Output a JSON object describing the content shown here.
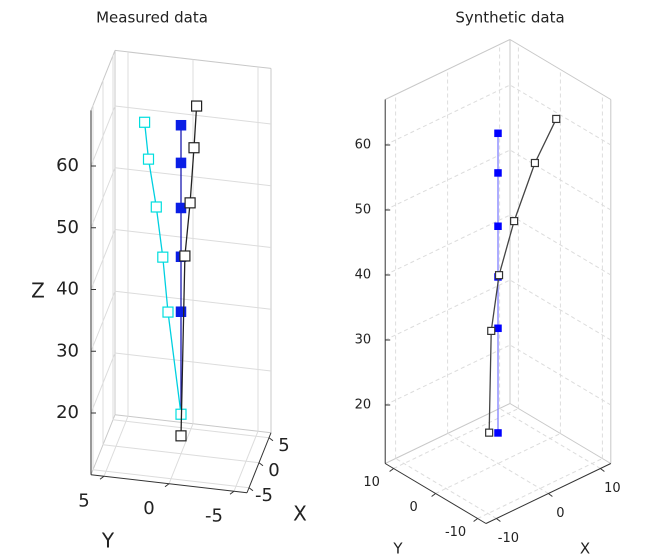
{
  "chart_data": [
    {
      "type": "line3d",
      "title": "Measured data",
      "xlabel": "X",
      "ylabel": "Y",
      "zlabel": "Z",
      "xlim": [
        -6,
        6
      ],
      "ylim": [
        -6,
        6
      ],
      "zlim": [
        10,
        69
      ],
      "xticks": [
        -5,
        0,
        5
      ],
      "yticks": [
        -5,
        0,
        5
      ],
      "zticks": [
        20,
        30,
        40,
        50,
        60
      ],
      "grid": true,
      "grid_style": "solid",
      "series": [
        {
          "color": "#0a1ee6",
          "line_color": "#1a1ab0",
          "filled": true,
          "x": [
            0,
            0,
            0,
            0,
            0,
            0
          ],
          "y": [
            0,
            0,
            0,
            0,
            0,
            0
          ],
          "values": [
            16.4,
            33,
            41.9,
            49.8,
            57.1,
            63.2
          ]
        },
        {
          "color": "#00dede",
          "line_color": "#00d0e0",
          "filled": false,
          "x": [
            0,
            0,
            0,
            0,
            0,
            0
          ],
          "y": [
            0,
            1,
            1.4,
            1.9,
            2.5,
            2.8
          ],
          "values": [
            16.4,
            32.7,
            41.5,
            49.5,
            57.1,
            63
          ]
        },
        {
          "color": "#222222",
          "line_color": "#222222",
          "filled": false,
          "x": [
            0,
            0,
            0,
            0,
            0
          ],
          "y": [
            0,
            -0.3,
            -0.7,
            -1,
            -1.2
          ],
          "values": [
            12.9,
            42.1,
            50.8,
            59.8,
            66.6
          ]
        }
      ]
    },
    {
      "type": "line3d",
      "title": "Synthetic data",
      "xlabel": "X",
      "ylabel": "Y",
      "xlim": [
        -12,
        12
      ],
      "ylim": [
        -12,
        12
      ],
      "zlim": [
        11,
        67
      ],
      "xticks": [
        -10,
        0,
        10
      ],
      "yticks": [
        -10,
        0,
        10
      ],
      "zticks": [
        20,
        30,
        40,
        50,
        60
      ],
      "grid": true,
      "grid_style": "dashed",
      "series": [
        {
          "color": "#0000ff",
          "line_color": "#8080ff",
          "filled": true,
          "x": [
            0,
            0,
            0,
            0,
            0,
            0
          ],
          "y": [
            0,
            0,
            0,
            0,
            0,
            0
          ],
          "values": [
            15.7,
            31.8,
            39.7,
            47.5,
            55.7,
            61.8
          ]
        },
        {
          "color": "#333333",
          "line_color": "#444444",
          "filled": false,
          "x": [
            -1.7,
            -1.3,
            0.2,
            3.1,
            7.1,
            11.2
          ],
          "y": [
            0,
            0,
            0,
            0,
            0,
            0
          ],
          "values": [
            16.4,
            31.9,
            39.9,
            47.1,
            54.5,
            59.7
          ]
        }
      ]
    }
  ]
}
